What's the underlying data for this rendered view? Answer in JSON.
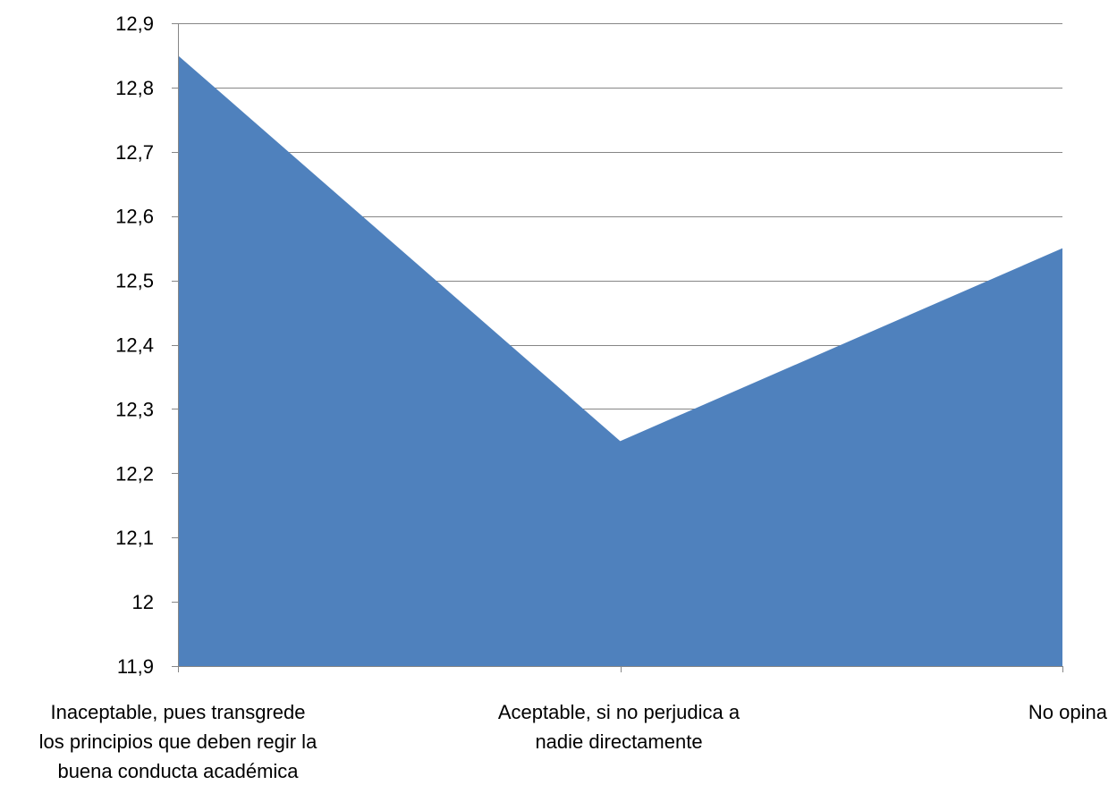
{
  "chart_data": {
    "type": "area",
    "categories": [
      [
        "Inaceptable, pues transgrede",
        "los principios que deben regir la",
        "buena conducta académica"
      ],
      [
        "Aceptable, si no perjudica a",
        "nadie directamente"
      ],
      [
        "No opina"
      ]
    ],
    "values": [
      12.85,
      12.25,
      12.55
    ],
    "ylim": [
      11.9,
      12.9
    ],
    "yticks": [
      "11,9",
      "12",
      "12,1",
      "12,2",
      "12,3",
      "12,4",
      "12,5",
      "12,6",
      "12,7",
      "12,8",
      "12,9"
    ],
    "grid": true,
    "legend": "none",
    "colors": {
      "fill": "#4f81bd",
      "grid": "#868686",
      "axis": "#868686"
    }
  }
}
